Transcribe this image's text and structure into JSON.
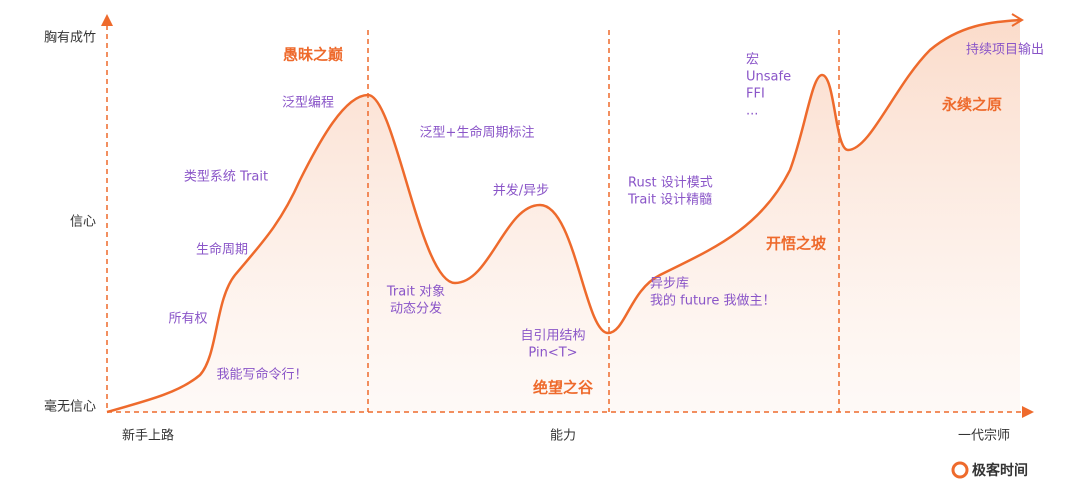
{
  "y_axis": {
    "labels": [
      "胸有成竹",
      "信心",
      "毫无信心"
    ]
  },
  "x_axis": {
    "labels": [
      "新手上路",
      "能力",
      "一代宗师"
    ]
  },
  "stages": [
    "愚昧之巅",
    "绝望之谷",
    "开悟之坡",
    "永续之原"
  ],
  "annotations": [
    {
      "lines": [
        "我能写命令行！"
      ]
    },
    {
      "lines": [
        "所有权"
      ]
    },
    {
      "lines": [
        "生命周期"
      ]
    },
    {
      "lines": [
        "类型系统 Trait"
      ]
    },
    {
      "lines": [
        "泛型编程"
      ]
    },
    {
      "lines": [
        "泛型+生命周期标注"
      ]
    },
    {
      "lines": [
        "Trait 对象",
        "动态分发"
      ]
    },
    {
      "lines": [
        "并发/异步"
      ]
    },
    {
      "lines": [
        "自引用结构",
        "Pin<T>"
      ]
    },
    {
      "lines": [
        "Rust 设计模式",
        "Trait 设计精髓"
      ]
    },
    {
      "lines": [
        "异步库",
        "我的 future 我做主！"
      ]
    },
    {
      "lines": [
        "宏",
        "Unsafe",
        "FFI",
        "..."
      ]
    },
    {
      "lines": [
        "持续项目输出"
      ]
    }
  ],
  "brand": "极客时间"
}
